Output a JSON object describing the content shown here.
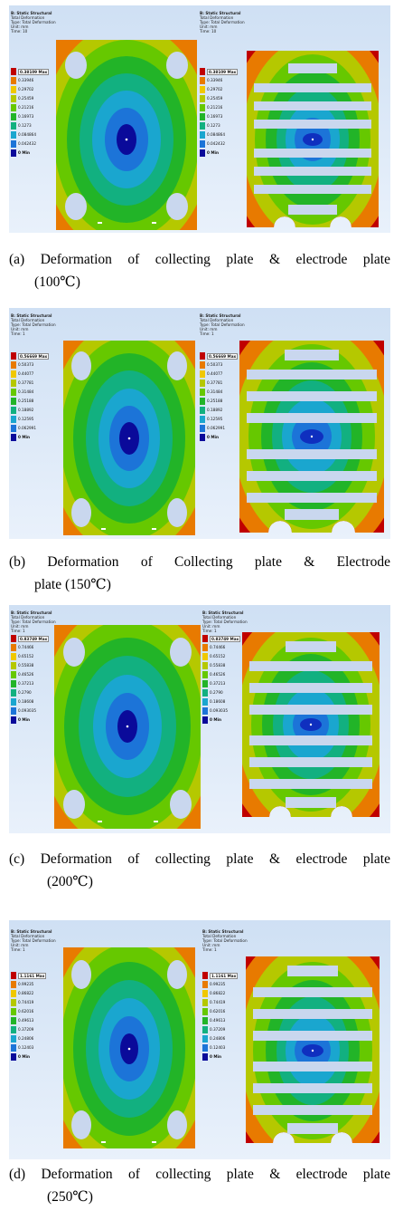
{
  "colors": [
    "#c00000",
    "#e87a00",
    "#f0c800",
    "#b5c800",
    "#66c800",
    "#22b428",
    "#12b080",
    "#1aa6cf",
    "#1c74d8",
    "#0f2fbf",
    "#0a0a9a"
  ],
  "panels": [
    {
      "id": "a",
      "left": {
        "header": [
          "B: Static Structural",
          "Total Deformation",
          "Type: Total Deformation",
          "Unit: mm",
          "Time: 10"
        ],
        "legend": [
          "0.38109 Max",
          "0.33946",
          "0.29702",
          "0.25459",
          "0.21216",
          "0.16973",
          "0.1273",
          "0.084864",
          "0.042432",
          "0 Min"
        ]
      },
      "right": {
        "header": [
          "B: Static Structural",
          "Total Deformation",
          "Type: Total Deformation",
          "Unit: mm",
          "Time: 10"
        ],
        "legend": [
          "0.38109 Max",
          "0.33946",
          "0.29702",
          "0.25459",
          "0.21216",
          "0.16973",
          "0.1273",
          "0.084864",
          "0.042432",
          "0 Min"
        ]
      },
      "caption": {
        "line1": [
          "(a)",
          "Deformation",
          "of",
          "collecting",
          "plate",
          "&",
          "electrode",
          "plate"
        ],
        "line2": "(100℃)"
      }
    },
    {
      "id": "b",
      "left": {
        "header": [
          "B: Static Structural",
          "Total Deformation",
          "Type: Total Deformation",
          "Unit: mm",
          "Time: 1"
        ],
        "legend": [
          "0.56669 Max",
          "0.50373",
          "0.44077",
          "0.37781",
          "0.31484",
          "0.25188",
          "0.18892",
          "0.12595",
          "0.062991",
          "0 Min"
        ]
      },
      "right": {
        "header": [
          "B: Static Structural",
          "Total Deformation",
          "Type: Total Deformation",
          "Unit: mm",
          "Time: 1"
        ],
        "legend": [
          "0.56669 Max",
          "0.50373",
          "0.44077",
          "0.37781",
          "0.31484",
          "0.25188",
          "0.18892",
          "0.12595",
          "0.062991",
          "0 Min"
        ]
      },
      "caption": {
        "line1": [
          "(b)",
          "Deformation",
          "of",
          "Collecting",
          "plate",
          "&",
          "Electrode"
        ],
        "line2": "plate (150℃)"
      }
    },
    {
      "id": "c",
      "left": {
        "header": [
          "B: Static Structural",
          "Total Deformation",
          "Type: Total Deformation",
          "Unit: mm",
          "Time: 1"
        ],
        "legend": [
          "0.83749 Max",
          "0.74466",
          "0.65152",
          "0.55838",
          "0.46526",
          "0.37213",
          "0.2790",
          "0.18608",
          "0.093035",
          "0 Min"
        ]
      },
      "right": {
        "header": [
          "B: Static Structural",
          "Total Deformation",
          "Type: Total Deformation",
          "Unit: mm",
          "Time: 1"
        ],
        "legend": [
          "0.83749 Max",
          "0.74466",
          "0.65152",
          "0.55838",
          "0.46526",
          "0.37213",
          "0.2790",
          "0.18608",
          "0.093035",
          "0 Min"
        ]
      },
      "caption": {
        "line1": [
          "(c)",
          "Deformation",
          "of",
          "collecting",
          "plate",
          "&",
          "electrode",
          "plate"
        ],
        "line2": "(200℃)"
      }
    },
    {
      "id": "d",
      "left": {
        "header": [
          "B: Static Structural",
          "Total Deformation",
          "Type: Total Deformation",
          "Unit: mm",
          "Time: 1"
        ],
        "legend": [
          "1.1161 Max",
          "0.99235",
          "0.86822",
          "0.74419",
          "0.62016",
          "0.49613",
          "0.37209",
          "0.24806",
          "0.12403",
          "0 Min"
        ]
      },
      "right": {
        "header": [
          "B: Static Structural",
          "Total Deformation",
          "Type: Total Deformation",
          "Unit: mm",
          "Time: 1"
        ],
        "legend": [
          "1.1161 Max",
          "0.99235",
          "0.86822",
          "0.74419",
          "0.62016",
          "0.49613",
          "0.37209",
          "0.24806",
          "0.12403",
          "0 Min"
        ]
      },
      "caption": {
        "line1": [
          "(d)",
          "Deformation",
          "of",
          "collecting",
          "plate",
          "&",
          "electrode",
          "plate"
        ],
        "line2": "(250℃)"
      }
    }
  ]
}
